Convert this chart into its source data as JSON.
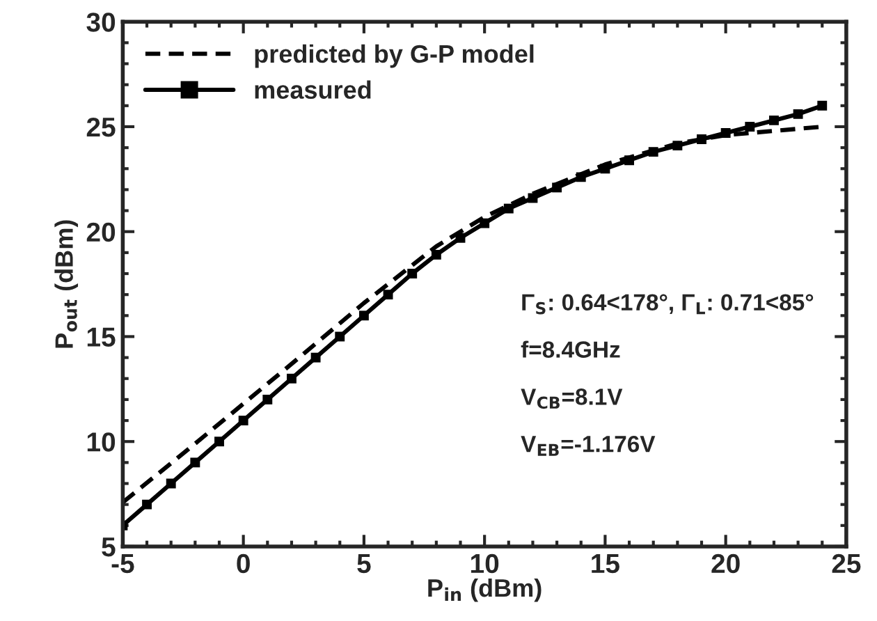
{
  "chart_data": {
    "type": "line",
    "xlabel": "P$_{in}$ (dBm)",
    "ylabel": "P$_{out}$ (dBm)",
    "xlim": [
      -5,
      25
    ],
    "xticks": [
      -5,
      0,
      5,
      10,
      15,
      20,
      25
    ],
    "ylim": [
      5,
      30
    ],
    "yticks": [
      5,
      10,
      15,
      20,
      25,
      30
    ],
    "grid": false,
    "legend": "top left",
    "series": [
      {
        "name": "predicted by G-P model",
        "color": "#000000",
        "line_style": "dashed",
        "marker": "none",
        "x": [
          -5,
          -2,
          0,
          2,
          5,
          8,
          10,
          12,
          15,
          18,
          20,
          22,
          24
        ],
        "values": [
          7.1,
          9.9,
          11.8,
          13.7,
          16.6,
          19.3,
          20.7,
          21.8,
          23.2,
          24.2,
          24.6,
          24.8,
          25.0
        ]
      },
      {
        "name": "measured",
        "color": "#000000",
        "line_style": "solid",
        "marker": "square",
        "x": [
          -5,
          -4,
          -3,
          -2,
          -1,
          0,
          1,
          2,
          3,
          4,
          5,
          6,
          7,
          8,
          9,
          10,
          11,
          12,
          13,
          14,
          15,
          16,
          17,
          18,
          19,
          20,
          21,
          22,
          23,
          24
        ],
        "values": [
          6,
          7,
          8,
          9,
          10,
          11,
          12,
          13,
          14,
          15,
          16,
          17,
          18,
          18.9,
          19.7,
          20.4,
          21.1,
          21.6,
          22.1,
          22.6,
          23.0,
          23.4,
          23.8,
          24.1,
          24.4,
          24.7,
          25.0,
          25.3,
          25.6,
          26.0
        ]
      }
    ],
    "annotations": [
      {
        "text": "Γ$_{S}$: 0.64<178°, Γ$_{L}$: 0.71<85°"
      },
      {
        "text": "f=8.4GHz"
      },
      {
        "text": "V$_{CB}$=8.1V"
      },
      {
        "text": "V$_{EB}$=-1.176V"
      }
    ]
  }
}
